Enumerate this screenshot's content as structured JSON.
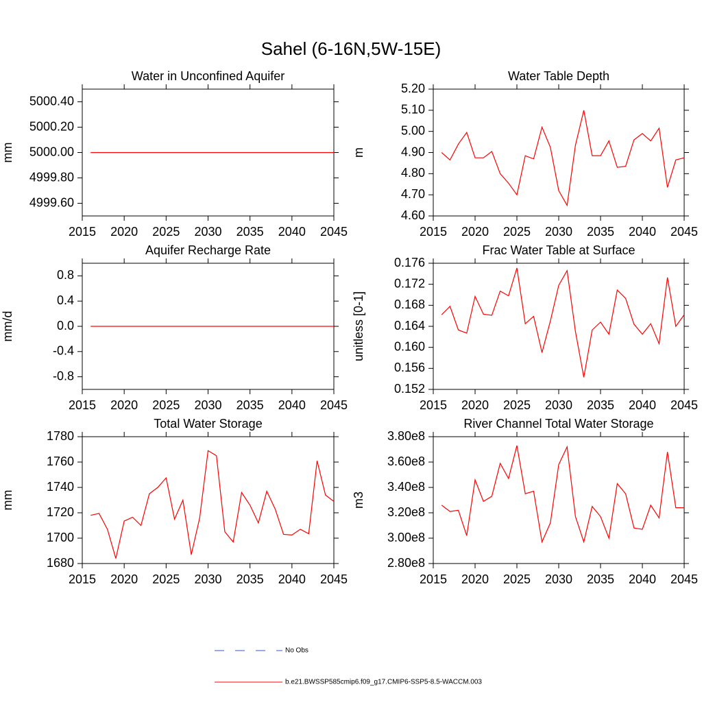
{
  "title": "Sahel (6-16N,5W-15E)",
  "legend": [
    {
      "name": "No Obs",
      "color": "#3355cc",
      "dashed": true
    },
    {
      "name": "b.e21.BWSSP585cmip6.f09_g17.CMIP6-SSP5-8.5-WACCM.003",
      "color": "#ff0000",
      "dashed": false
    }
  ],
  "chart_data": [
    {
      "type": "line",
      "title": "Water in Unconfined Aquifer",
      "ylabel": "mm",
      "color": "#ff0000",
      "x": [
        2016,
        2017,
        2018,
        2019,
        2020,
        2021,
        2022,
        2023,
        2024,
        2025,
        2026,
        2027,
        2028,
        2029,
        2030,
        2031,
        2032,
        2033,
        2034,
        2035,
        2036,
        2037,
        2038,
        2039,
        2040,
        2041,
        2042,
        2043,
        2044,
        2045
      ],
      "values": [
        5000,
        5000,
        5000,
        5000,
        5000,
        5000,
        5000,
        5000,
        5000,
        5000,
        5000,
        5000,
        5000,
        5000,
        5000,
        5000,
        5000,
        5000,
        5000,
        5000,
        5000,
        5000,
        5000,
        5000,
        5000,
        5000,
        5000,
        5000,
        5000,
        5000
      ],
      "xlim": [
        2015,
        2045
      ],
      "xticks": [
        2015,
        2020,
        2025,
        2030,
        2035,
        2040,
        2045
      ],
      "ylim": [
        4999.5,
        5000.5
      ],
      "yticks": [
        {
          "value": 4999.6,
          "label": "4999.60"
        },
        {
          "value": 4999.8,
          "label": "4999.80"
        },
        {
          "value": 5000,
          "label": "5000.00"
        },
        {
          "value": 5000.2,
          "label": "5000.20"
        },
        {
          "value": 5000.4,
          "label": "5000.40"
        }
      ]
    },
    {
      "type": "line",
      "title": "Water Table Depth",
      "ylabel": "m",
      "color": "#ff0000",
      "x": [
        2016,
        2017,
        2018,
        2019,
        2020,
        2021,
        2022,
        2023,
        2024,
        2025,
        2026,
        2027,
        2028,
        2029,
        2030,
        2031,
        2032,
        2033,
        2034,
        2035,
        2036,
        2037,
        2038,
        2039,
        2040,
        2041,
        2042,
        2043,
        2044,
        2045
      ],
      "values": [
        4.9,
        4.865,
        4.94,
        4.995,
        4.875,
        4.875,
        4.905,
        4.8,
        4.755,
        4.7,
        4.885,
        4.87,
        5.02,
        4.925,
        4.72,
        4.65,
        4.935,
        5.1,
        4.885,
        4.885,
        4.955,
        4.83,
        4.835,
        4.96,
        4.99,
        4.955,
        5.015,
        4.735,
        4.865,
        4.875
      ],
      "xlim": [
        2015,
        2045
      ],
      "xticks": [
        2015,
        2020,
        2025,
        2030,
        2035,
        2040,
        2045
      ],
      "ylim": [
        4.6,
        5.2
      ],
      "yticks": [
        {
          "value": 4.6,
          "label": "4.60"
        },
        {
          "value": 4.7,
          "label": "4.70"
        },
        {
          "value": 4.8,
          "label": "4.80"
        },
        {
          "value": 4.9,
          "label": "4.90"
        },
        {
          "value": 5.0,
          "label": "5.00"
        },
        {
          "value": 5.1,
          "label": "5.10"
        },
        {
          "value": 5.2,
          "label": "5.20"
        }
      ]
    },
    {
      "type": "line",
      "title": "Aquifer Recharge Rate",
      "ylabel": "mm/d",
      "color": "#ff0000",
      "x": [
        2016,
        2017,
        2018,
        2019,
        2020,
        2021,
        2022,
        2023,
        2024,
        2025,
        2026,
        2027,
        2028,
        2029,
        2030,
        2031,
        2032,
        2033,
        2034,
        2035,
        2036,
        2037,
        2038,
        2039,
        2040,
        2041,
        2042,
        2043,
        2044,
        2045
      ],
      "values": [
        0,
        0,
        0,
        0,
        0,
        0,
        0,
        0,
        0,
        0,
        0,
        0,
        0,
        0,
        0,
        0,
        0,
        0,
        0,
        0,
        0,
        0,
        0,
        0,
        0,
        0,
        0,
        0,
        0,
        0
      ],
      "xlim": [
        2015,
        2045
      ],
      "xticks": [
        2015,
        2020,
        2025,
        2030,
        2035,
        2040,
        2045
      ],
      "ylim": [
        -1,
        1
      ],
      "yticks": [
        -0.8,
        -0.4,
        {
          "value": 0,
          "label": "0.0"
        },
        0.4,
        0.8
      ]
    },
    {
      "type": "line",
      "title": "Frac Water Table at Surface",
      "ylabel": "unitless [0-1]",
      "color": "#ff0000",
      "x": [
        2016,
        2017,
        2018,
        2019,
        2020,
        2021,
        2022,
        2023,
        2024,
        2025,
        2026,
        2027,
        2028,
        2029,
        2030,
        2031,
        2032,
        2033,
        2034,
        2035,
        2036,
        2037,
        2038,
        2039,
        2040,
        2041,
        2042,
        2043,
        2044,
        2045
      ],
      "values": [
        0.1662,
        0.1678,
        0.1633,
        0.1627,
        0.1697,
        0.1663,
        0.1661,
        0.1707,
        0.1698,
        0.1751,
        0.1645,
        0.1659,
        0.159,
        0.165,
        0.1718,
        0.1746,
        0.163,
        0.1543,
        0.1633,
        0.1648,
        0.1625,
        0.1709,
        0.1693,
        0.1644,
        0.1625,
        0.1645,
        0.1607,
        0.1733,
        0.164,
        0.1662
      ],
      "xlim": [
        2015,
        2045
      ],
      "xticks": [
        2015,
        2020,
        2025,
        2030,
        2035,
        2040,
        2045
      ],
      "ylim": [
        0.152,
        0.176
      ],
      "yticks": [
        0.152,
        0.156,
        {
          "value": 0.16,
          "label": "0.160"
        },
        0.164,
        0.168,
        0.172,
        0.176
      ]
    },
    {
      "type": "line",
      "title": "Total Water Storage",
      "ylabel": "mm",
      "color": "#ff0000",
      "x": [
        2016,
        2017,
        2018,
        2019,
        2020,
        2021,
        2022,
        2023,
        2024,
        2025,
        2026,
        2027,
        2028,
        2029,
        2030,
        2031,
        2032,
        2033,
        2034,
        2035,
        2036,
        2037,
        2038,
        2039,
        2040,
        2041,
        2042,
        2043,
        2044,
        2045
      ],
      "values": [
        1718,
        1719.5,
        1707,
        1684,
        1713.5,
        1716.5,
        1710,
        1735,
        1740,
        1747.5,
        1715,
        1730,
        1687,
        1716,
        1769,
        1765,
        1705,
        1697,
        1736,
        1726,
        1712,
        1737,
        1723,
        1703,
        1702.5,
        1707,
        1703.5,
        1761,
        1734,
        1729
      ],
      "xlim": [
        2015,
        2045
      ],
      "xticks": [
        2015,
        2020,
        2025,
        2030,
        2035,
        2040,
        2045
      ],
      "ylim": [
        1680,
        1780
      ],
      "yticks": [
        1680,
        1700,
        1720,
        1740,
        1760,
        1780
      ]
    },
    {
      "type": "line",
      "title": "River Channel Total Water Storage",
      "ylabel": "m3",
      "color": "#ff0000",
      "x": [
        2016,
        2017,
        2018,
        2019,
        2020,
        2021,
        2022,
        2023,
        2024,
        2025,
        2026,
        2027,
        2028,
        2029,
        2030,
        2031,
        2032,
        2033,
        2034,
        2035,
        2036,
        2037,
        2038,
        2039,
        2040,
        2041,
        2042,
        2043,
        2044,
        2045
      ],
      "values": [
        326000000,
        321000000,
        322000000,
        302000000,
        346000000,
        329000000,
        333000000,
        359000000,
        347000000,
        373000000,
        335000000,
        337000000,
        297000000,
        312000000,
        358000000,
        372000000,
        317000000,
        297000000,
        325000000,
        317000000,
        300000000,
        343000000,
        335000000,
        308000000,
        307000000,
        326000000,
        316000000,
        368000000,
        324000000,
        324000000
      ],
      "xlim": [
        2015,
        2045
      ],
      "xticks": [
        2015,
        2020,
        2025,
        2030,
        2035,
        2040,
        2045
      ],
      "ylim": [
        280000000,
        380000000
      ],
      "yticks": [
        {
          "value": 280000000,
          "label": "2.80e8"
        },
        {
          "value": 300000000,
          "label": "3.00e8"
        },
        {
          "value": 320000000,
          "label": "3.20e8"
        },
        {
          "value": 340000000,
          "label": "3.40e8"
        },
        {
          "value": 360000000,
          "label": "3.60e8"
        },
        {
          "value": 380000000,
          "label": "3.80e8"
        }
      ]
    }
  ]
}
